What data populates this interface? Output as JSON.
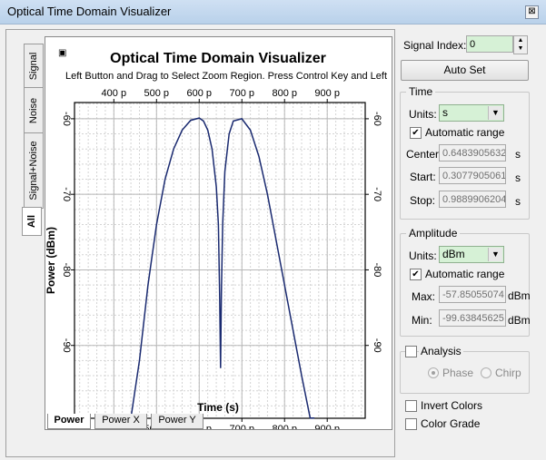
{
  "window": {
    "title": "Optical Time Domain Visualizer",
    "close_glyph": "⊠"
  },
  "side_tabs": [
    "Signal",
    "Noise",
    "Signal+Noise",
    "All"
  ],
  "plot": {
    "title": "Optical Time Domain Visualizer",
    "subtitle": "Left Button and Drag to Select Zoom Region. Press Control Key and Left"
  },
  "bottom_tabs": [
    "Power",
    "Power X",
    "Power Y"
  ],
  "chart_data": {
    "type": "line",
    "title": "Optical Time Domain Visualizer",
    "xlabel": "Time (s)",
    "ylabel": "Power (dBm)",
    "x_tick_labels": [
      "400 p",
      "500 p",
      "600 p",
      "700 p",
      "800 p",
      "900 p"
    ],
    "x_ticks": [
      4e-10,
      5e-10,
      6e-10,
      7e-10,
      8e-10,
      9e-10
    ],
    "y_tick_labels": [
      "-60",
      "-70",
      "-80",
      "-90"
    ],
    "y_ticks": [
      -60,
      -70,
      -80,
      -90
    ],
    "xlim": [
      3.07790506e-10,
      9.889906204e-10
    ],
    "ylim": [
      -99.63845625,
      -57.85055074
    ],
    "grid": true,
    "series": [
      {
        "color": "#1a2a70",
        "x": [
          4.4e-10,
          4.6e-10,
          4.8e-10,
          5e-10,
          5.2e-10,
          5.4e-10,
          5.6e-10,
          5.8e-10,
          6e-10,
          6.1e-10,
          6.2e-10,
          6.3e-10,
          6.4e-10,
          6.45e-10,
          6.48e-10,
          6.5e-10,
          6.52e-10,
          6.55e-10,
          6.6e-10,
          6.7e-10,
          6.8e-10,
          7e-10,
          7.2e-10,
          7.4e-10,
          7.6e-10,
          7.8e-10,
          8e-10,
          8.2e-10,
          8.4e-10,
          8.6e-10,
          8.7e-10
        ],
        "y": [
          -99.6,
          -92,
          -82,
          -74,
          -68,
          -64,
          -61.5,
          -60.2,
          -59.9,
          -60.3,
          -61.5,
          -64,
          -69,
          -74,
          -83.5,
          -93,
          -83,
          -74,
          -67,
          -62,
          -60.3,
          -60.0,
          -61.5,
          -65,
          -70,
          -76,
          -82,
          -88,
          -94,
          -99.6,
          -99.6
        ]
      }
    ]
  },
  "controls": {
    "signal_index_label": "Signal Index:",
    "signal_index_value": "0",
    "auto_set": "Auto Set",
    "time": {
      "title": "Time",
      "units_label": "Units:",
      "units_value": "s",
      "auto_range": "Automatic range",
      "center_label": "Center:",
      "center_value": "0.6483905632",
      "center_unit": "s",
      "start_label": "Start:",
      "start_value": "0.3077905061",
      "start_unit": "s",
      "stop_label": "Stop:",
      "stop_value": "0.9889906204",
      "stop_unit": "s"
    },
    "amplitude": {
      "title": "Amplitude",
      "units_label": "Units:",
      "units_value": "dBm",
      "auto_range": "Automatic range",
      "max_label": "Max:",
      "max_value": "-57.85055074",
      "max_unit": "dBm",
      "min_label": "Min:",
      "min_value": "-99.63845625",
      "min_unit": "dBm"
    },
    "analysis": {
      "title": "Analysis",
      "phase": "Phase",
      "chirp": "Chirp"
    },
    "invert_colors": "Invert Colors",
    "color_grade": "Color Grade"
  }
}
